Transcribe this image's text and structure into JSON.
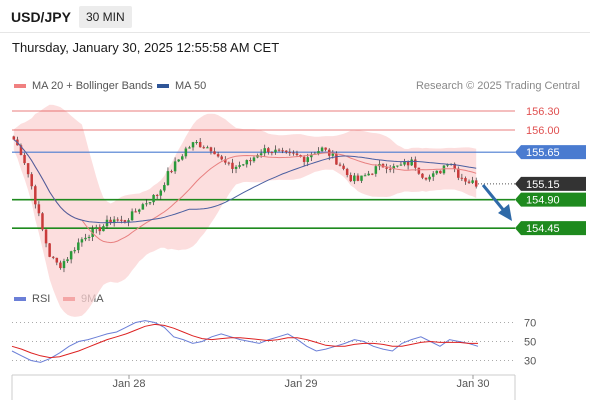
{
  "header": {
    "symbol": "USD/JPY",
    "timeframe": "30 MIN"
  },
  "datetime": "Thursday, January 30, 2025 12:55:58 AM CET",
  "legend": [
    {
      "label": "MA 20 + Bollinger Bands",
      "color": "#f08080"
    },
    {
      "label": "MA 50",
      "color": "#2f5597"
    }
  ],
  "copyright": "Research © 2025 Trading Central",
  "rsi_legend": [
    {
      "label": "RSI",
      "color": "#6b7fd7"
    },
    {
      "label": "9MA",
      "color": "#dd2222"
    }
  ],
  "colors": {
    "resistance": "#e05050",
    "support": "#1e8a1e",
    "pivot": "#4a7bd0",
    "current": "#333333",
    "arrow": "#2f6aa8"
  },
  "chart_data": [
    {
      "type": "line",
      "subtype": "candlestick",
      "title": "USD/JPY",
      "ylim": [
        153.6,
        156.6
      ],
      "x_ticks": [
        "Jan 28",
        "Jan 29",
        "Jan 30"
      ],
      "levels": [
        {
          "value": 156.3,
          "label": "156.30",
          "kind": "resistance"
        },
        {
          "value": 156.0,
          "label": "156.00",
          "kind": "resistance"
        },
        {
          "value": 155.65,
          "label": "155.65",
          "kind": "pivot"
        },
        {
          "value": 155.15,
          "label": "155.15",
          "kind": "current"
        },
        {
          "value": 154.9,
          "label": "154.90",
          "kind": "support"
        },
        {
          "value": 154.45,
          "label": "154.45",
          "kind": "support"
        }
      ],
      "price_path": [
        155.85,
        155.6,
        155.1,
        154.5,
        154.0,
        153.85,
        154.0,
        154.2,
        154.35,
        154.4,
        154.5,
        154.6,
        154.55,
        154.65,
        154.8,
        154.9,
        155.0,
        155.3,
        155.5,
        155.7,
        155.8,
        155.75,
        155.7,
        155.5,
        155.4,
        155.45,
        155.5,
        155.65,
        155.7,
        155.65,
        155.6,
        155.6,
        155.55,
        155.65,
        155.7,
        155.6,
        155.45,
        155.25,
        155.2,
        155.3,
        155.4,
        155.45,
        155.4,
        155.45,
        155.5,
        155.3,
        155.25,
        155.35,
        155.55,
        155.3,
        155.2,
        155.15
      ]
    },
    {
      "type": "line",
      "title": "RSI",
      "ylim": [
        20,
        80
      ],
      "y_ticks": [
        70,
        50,
        30
      ],
      "series": [
        {
          "name": "RSI",
          "values": [
            40,
            35,
            30,
            28,
            32,
            38,
            45,
            50,
            52,
            55,
            58,
            60,
            65,
            70,
            72,
            70,
            65,
            55,
            52,
            48,
            50,
            55,
            58,
            55,
            52,
            50,
            48,
            52,
            55,
            58,
            52,
            45,
            40,
            42,
            45,
            48,
            52,
            50,
            45,
            42,
            40,
            48,
            52,
            55,
            50,
            45,
            52,
            50,
            48,
            45
          ]
        },
        {
          "name": "9MA",
          "values": [
            45,
            42,
            38,
            35,
            33,
            34,
            37,
            40,
            44,
            48,
            52,
            55,
            58,
            62,
            66,
            68,
            67,
            64,
            60,
            56,
            53,
            52,
            53,
            54,
            54,
            53,
            52,
            51,
            52,
            54,
            54,
            52,
            49,
            46,
            45,
            45,
            47,
            48,
            48,
            47,
            45,
            45,
            47,
            49,
            50,
            49,
            49,
            49,
            48,
            48
          ]
        }
      ]
    }
  ]
}
